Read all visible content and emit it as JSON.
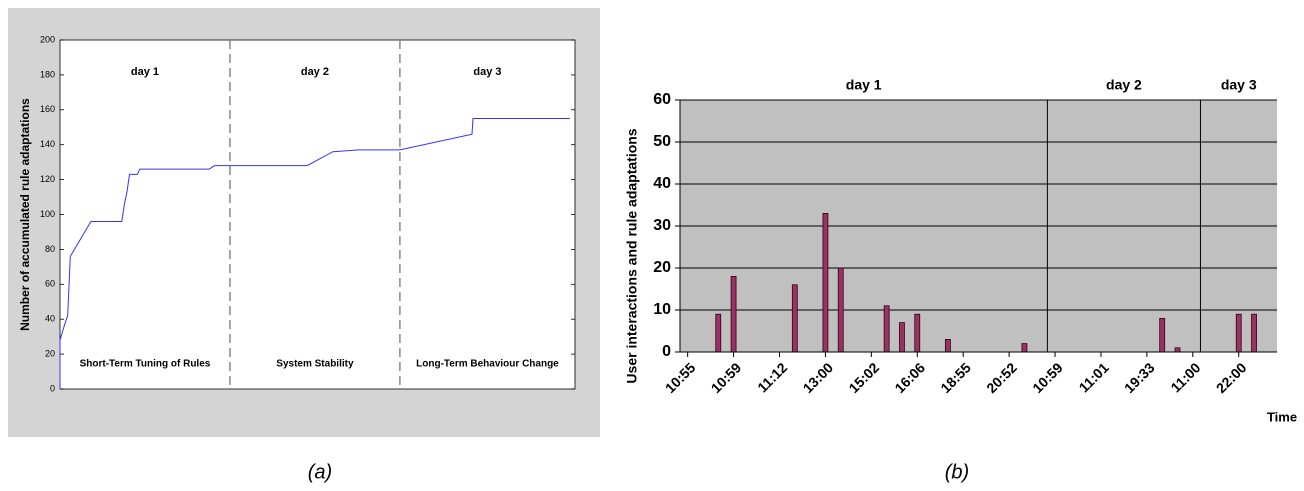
{
  "chart_data": [
    {
      "type": "line",
      "y_label": "Number of accumulated rule adaptations",
      "day_labels": [
        "day 1",
        "day 2",
        "day 3"
      ],
      "region_labels": [
        "Short-Term Tuning of Rules",
        "System Stability",
        "Long-Term Behaviour Change"
      ],
      "caption": "(a)",
      "color": "#3333ff",
      "x": [
        0,
        0,
        1,
        1.5,
        2,
        6,
        12,
        12.5,
        13,
        13.5,
        15,
        15.5,
        29,
        30,
        48,
        53,
        58,
        66,
        80,
        80.2,
        99
      ],
      "values": [
        0,
        28,
        38,
        42,
        76,
        96,
        96,
        106,
        113,
        123,
        123,
        126,
        126,
        128,
        128,
        136,
        137,
        137,
        146,
        155,
        155
      ],
      "xlim": [
        0,
        100
      ],
      "ylim": [
        0,
        200
      ],
      "yticks": [
        0,
        20,
        40,
        60,
        80,
        100,
        120,
        140,
        160,
        180,
        200
      ],
      "dividers": [
        33,
        66
      ]
    },
    {
      "type": "bar",
      "y_label": "User interactions and rule adaptations",
      "x_label": "Time",
      "day_labels": [
        "day 1",
        "day 2",
        "day 3"
      ],
      "caption": "(b)",
      "color": "#993366",
      "categories": [
        "10:55",
        null,
        null,
        "10:59",
        null,
        null,
        "11:12",
        null,
        null,
        "13:00",
        null,
        null,
        "15:02",
        null,
        null,
        "16:06",
        null,
        null,
        "18:55",
        null,
        null,
        "20:52",
        null,
        null,
        "10:59",
        null,
        null,
        "11:01",
        null,
        null,
        "19:33",
        null,
        null,
        "11:00",
        null,
        null,
        "22:00",
        null,
        null
      ],
      "values": [
        0,
        0,
        9,
        18,
        0,
        0,
        0,
        16,
        0,
        33,
        20,
        0,
        0,
        11,
        7,
        9,
        0,
        3,
        0,
        0,
        0,
        0,
        2,
        0,
        0,
        0,
        0,
        0,
        0,
        0,
        0,
        8,
        1,
        0,
        0,
        0,
        9,
        9,
        0
      ],
      "ylim": [
        0,
        60
      ],
      "yticks": [
        0,
        10,
        20,
        30,
        40,
        50,
        60
      ],
      "grid": true,
      "dividers": [
        24,
        34
      ]
    }
  ]
}
